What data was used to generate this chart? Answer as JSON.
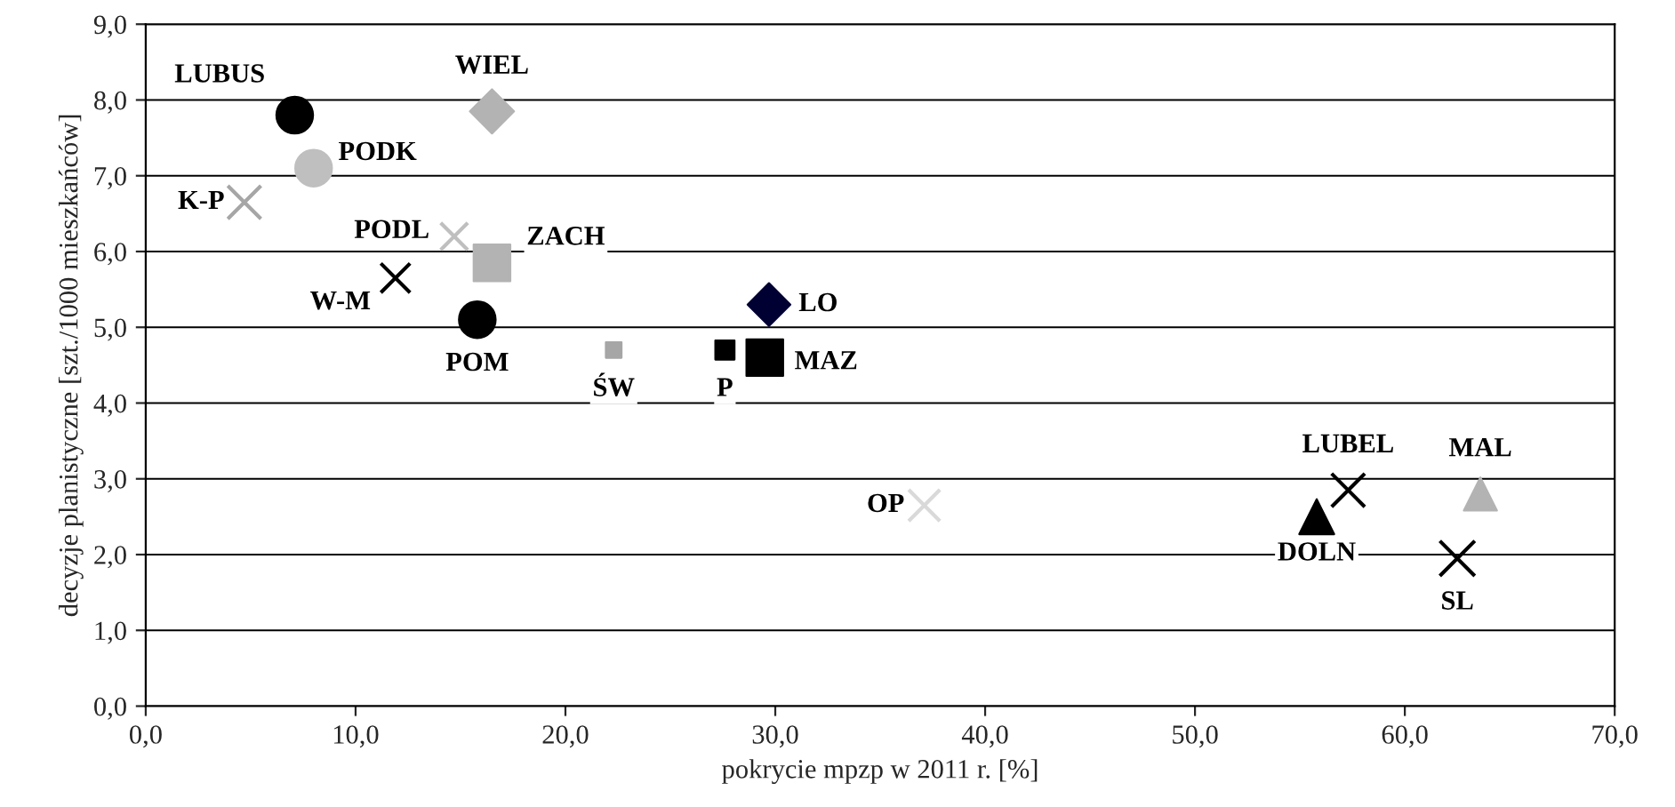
{
  "chart_data": {
    "type": "scatter",
    "xlabel": "pokrycie mpzp w 2011 r. [%]",
    "ylabel": "decyzje planistyczne [szt./1000 mieszkańców]",
    "xlim": [
      0,
      70
    ],
    "ylim": [
      0,
      9
    ],
    "xticks": [
      {
        "value": 0,
        "label": "0,0"
      },
      {
        "value": 10,
        "label": "10,0"
      },
      {
        "value": 20,
        "label": "20,0"
      },
      {
        "value": 30,
        "label": "30,0"
      },
      {
        "value": 40,
        "label": "40,0"
      },
      {
        "value": 50,
        "label": "50,0"
      },
      {
        "value": 60,
        "label": "60,0"
      },
      {
        "value": 70,
        "label": "70,0"
      }
    ],
    "yticks": [
      {
        "value": 0,
        "label": "0,0"
      },
      {
        "value": 1,
        "label": "1,0"
      },
      {
        "value": 2,
        "label": "2,0"
      },
      {
        "value": 3,
        "label": "3,0"
      },
      {
        "value": 4,
        "label": "4,0"
      },
      {
        "value": 5,
        "label": "5,0"
      },
      {
        "value": 6,
        "label": "6,0"
      },
      {
        "value": 7,
        "label": "7,0"
      },
      {
        "value": 8,
        "label": "8,0"
      },
      {
        "value": 9,
        "label": "9,0"
      }
    ],
    "grid": "y",
    "legend": false,
    "series": [
      {
        "name": "LUBUS",
        "color": "#000000",
        "marker": "circle",
        "x": [
          7.1
        ],
        "values": [
          7.8
        ]
      },
      {
        "name": "WIEL",
        "color": "#b3b3b3",
        "marker": "diamond",
        "x": [
          16.5
        ],
        "values": [
          7.85
        ]
      },
      {
        "name": "PODK",
        "color": "#bfbfbf",
        "marker": "circle",
        "x": [
          8.0
        ],
        "values": [
          7.1
        ]
      },
      {
        "name": "K-P",
        "color": "#a6a6a6",
        "marker": "cross",
        "x": [
          4.7
        ],
        "values": [
          6.65
        ]
      },
      {
        "name": "PODL",
        "color": "#bfbfbf",
        "marker": "cross",
        "x": [
          14.7
        ],
        "values": [
          6.2
        ]
      },
      {
        "name": "ZACH",
        "color": "#b3b3b3",
        "marker": "square",
        "x": [
          16.5
        ],
        "values": [
          5.85
        ]
      },
      {
        "name": "W-M",
        "color": "#000000",
        "marker": "cross",
        "x": [
          11.9
        ],
        "values": [
          5.65
        ]
      },
      {
        "name": "POM",
        "color": "#000000",
        "marker": "circle",
        "x": [
          15.8
        ],
        "values": [
          5.1
        ]
      },
      {
        "name": "ŚW",
        "color": "#a6a6a6",
        "marker": "square",
        "x": [
          22.3
        ],
        "values": [
          4.7
        ]
      },
      {
        "name": "P",
        "color": "#000000",
        "marker": "square",
        "x": [
          27.6
        ],
        "values": [
          4.7
        ]
      },
      {
        "name": "MAZ",
        "color": "#000000",
        "marker": "square",
        "x": [
          29.5
        ],
        "values": [
          4.6
        ]
      },
      {
        "name": "LO",
        "color": "#000033",
        "marker": "diamond",
        "x": [
          29.7
        ],
        "values": [
          5.3
        ]
      },
      {
        "name": "OP",
        "color": "#d9d9d9",
        "marker": "cross",
        "x": [
          37.1
        ],
        "values": [
          2.65
        ]
      },
      {
        "name": "LUBEL",
        "color": "#000000",
        "marker": "cross",
        "x": [
          57.3
        ],
        "values": [
          2.85
        ]
      },
      {
        "name": "DOLN",
        "color": "#000000",
        "marker": "triangle",
        "x": [
          55.8
        ],
        "values": [
          2.5
        ]
      },
      {
        "name": "MAL",
        "color": "#b3b3b3",
        "marker": "triangle",
        "x": [
          63.6
        ],
        "values": [
          2.8
        ]
      },
      {
        "name": "SL",
        "color": "#000000",
        "marker": "cross",
        "x": [
          62.5
        ],
        "values": [
          1.95
        ]
      }
    ]
  }
}
